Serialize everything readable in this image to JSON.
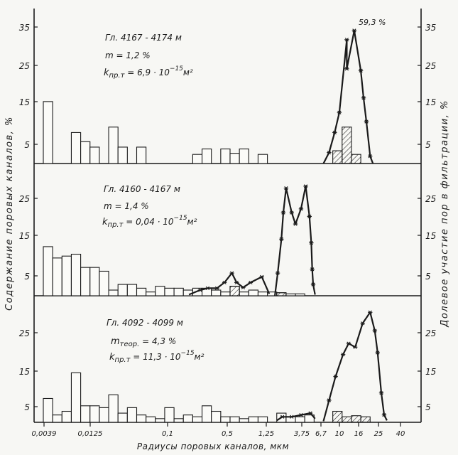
{
  "chart_data": {
    "type": "bar",
    "xlabel": "Радиусы поровых каналов, мкм",
    "ylabel_left": "Содержание поровых каналов, %",
    "ylabel_right": "Долевое участие пор в фильтрации, %",
    "x_ticks": [
      "0,0039",
      "0,0125",
      "0,1",
      "0,5",
      "1,25",
      "3,75",
      "6,7",
      "10",
      "16",
      "25",
      "40"
    ],
    "panels": [
      {
        "depth": "Гл. 4167 - 4174 м",
        "porosity": "m = 1,2 %",
        "perm_symbol": "k",
        "perm_sub": "пр.т",
        "perm_value": " = 6,9 · 10",
        "perm_exp": "−15",
        "perm_unit": "м²",
        "peak_label": "59,3 %",
        "y_ticks_left": [
          "5",
          "15",
          "25",
          "35"
        ],
        "y_ticks_right": [
          "5",
          "15",
          "25",
          "35"
        ],
        "ylim": [
          0,
          40
        ],
        "bars": [
          {
            "x0": 0,
            "x1": 1,
            "y": 17
          },
          {
            "x0": 3,
            "x1": 4,
            "y": 8.5
          },
          {
            "x0": 4,
            "x1": 5,
            "y": 6
          },
          {
            "x0": 5,
            "x1": 6,
            "y": 4.5
          },
          {
            "x0": 7,
            "x1": 8,
            "y": 10
          },
          {
            "x0": 8,
            "x1": 9,
            "y": 4.5
          },
          {
            "x0": 10,
            "x1": 11,
            "y": 4.5
          },
          {
            "x0": 16,
            "x1": 17,
            "y": 2.5
          },
          {
            "x0": 17,
            "x1": 18,
            "y": 4
          },
          {
            "x0": 19,
            "x1": 20,
            "y": 4
          },
          {
            "x0": 20,
            "x1": 21,
            "y": 2.8
          },
          {
            "x0": 21,
            "x1": 22,
            "y": 4
          },
          {
            "x0": 23,
            "x1": 24,
            "y": 2.5
          }
        ],
        "hatched_bars": [
          {
            "x0": 31,
            "x1": 32,
            "y": 3.5
          },
          {
            "x0": 32,
            "x1": 33,
            "y": 10
          },
          {
            "x0": 33,
            "x1": 34,
            "y": 2.5
          }
        ],
        "curve_segments": [
          [
            [
              30,
              0
            ],
            [
              30.6,
              3
            ],
            [
              31.2,
              8.5
            ],
            [
              31.7,
              14
            ],
            [
              32.5,
              34
            ],
            [
              32.5,
              26
            ],
            [
              33.3,
              36.5
            ],
            [
              34,
              25.5
            ],
            [
              34.3,
              18
            ],
            [
              34.6,
              11.5
            ],
            [
              35,
              2
            ],
            [
              35.3,
              0
            ]
          ]
        ]
      },
      {
        "depth": "Гл. 4160 - 4167 м",
        "porosity": "m = 1,4 %",
        "perm_symbol": "k",
        "perm_sub": "пр.т",
        "perm_value": " = 0,04 · 10",
        "perm_exp": "−15",
        "perm_unit": "м²",
        "y_ticks_left": [
          "5",
          "15",
          "25"
        ],
        "y_ticks_right": [
          "5",
          "15",
          "25"
        ],
        "ylim": [
          0,
          32
        ],
        "bars": [
          {
            "x0": 0,
            "x1": 1,
            "y": 13
          },
          {
            "x0": 1,
            "x1": 2,
            "y": 10
          },
          {
            "x0": 2,
            "x1": 3,
            "y": 10.5
          },
          {
            "x0": 3,
            "x1": 4,
            "y": 11
          },
          {
            "x0": 4,
            "x1": 5,
            "y": 7.5
          },
          {
            "x0": 5,
            "x1": 6,
            "y": 7.5
          },
          {
            "x0": 6,
            "x1": 7,
            "y": 6.5
          },
          {
            "x0": 7,
            "x1": 8,
            "y": 1.5
          },
          {
            "x0": 8,
            "x1": 9,
            "y": 3
          },
          {
            "x0": 9,
            "x1": 10,
            "y": 3
          },
          {
            "x0": 10,
            "x1": 11,
            "y": 2
          },
          {
            "x0": 11,
            "x1": 12,
            "y": 1
          },
          {
            "x0": 12,
            "x1": 13,
            "y": 2.5
          },
          {
            "x0": 13,
            "x1": 14,
            "y": 2
          },
          {
            "x0": 14,
            "x1": 15,
            "y": 2
          },
          {
            "x0": 15,
            "x1": 16,
            "y": 1.5
          },
          {
            "x0": 16,
            "x1": 17,
            "y": 2
          },
          {
            "x0": 17,
            "x1": 18,
            "y": 2
          },
          {
            "x0": 18,
            "x1": 19,
            "y": 1.5
          },
          {
            "x0": 19,
            "x1": 20,
            "y": 1
          },
          {
            "x0": 20,
            "x1": 21,
            "y": 2.5
          },
          {
            "x0": 21,
            "x1": 22,
            "y": 1
          },
          {
            "x0": 22,
            "x1": 23,
            "y": 1.5
          },
          {
            "x0": 23,
            "x1": 24,
            "y": 1
          },
          {
            "x0": 24,
            "x1": 25,
            "y": 1
          },
          {
            "x0": 25,
            "x1": 26,
            "y": 0.8
          },
          {
            "x0": 26,
            "x1": 27,
            "y": 0.5
          },
          {
            "x0": 27,
            "x1": 28,
            "y": 0.5
          }
        ],
        "hatched_bars": [
          {
            "x0": 20,
            "x1": 21,
            "y": 2.5
          },
          {
            "x0": 25,
            "x1": 26,
            "y": 0.8
          }
        ],
        "curve_segments": [
          [
            [
              15.6,
              0.3
            ],
            [
              16.8,
              1.5
            ],
            [
              17.6,
              2
            ],
            [
              18.6,
              2
            ],
            [
              19.4,
              3.5
            ],
            [
              20.2,
              6
            ],
            [
              20.7,
              3.5
            ],
            [
              21.4,
              2.2
            ],
            [
              22.2,
              3.5
            ],
            [
              23.4,
              5
            ],
            [
              24.2,
              0.5
            ]
          ],
          [
            [
              24.8,
              0
            ],
            [
              25.1,
              6
            ],
            [
              25.5,
              15
            ],
            [
              25.7,
              22
            ],
            [
              26,
              28.5
            ],
            [
              26.6,
              22
            ],
            [
              27,
              19
            ],
            [
              27.6,
              23
            ],
            [
              28.1,
              29
            ],
            [
              28.5,
              21
            ],
            [
              28.7,
              14
            ],
            [
              28.8,
              7
            ],
            [
              28.9,
              3
            ],
            [
              29.1,
              0.3
            ]
          ]
        ]
      },
      {
        "depth": "Гл. 4092 - 4099 м",
        "porosity_symbol": "m",
        "porosity_sub": "теор.",
        "porosity_value": " = 4,3 %",
        "perm_symbol": "k",
        "perm_sub": "пр.т",
        "perm_value": " = 11,3 · 10",
        "perm_exp": "−15",
        "perm_unit": "м²",
        "y_ticks_left": [
          "5",
          "15",
          "25"
        ],
        "y_ticks_right": [
          "5",
          "15",
          "25"
        ],
        "ylim": [
          0,
          32
        ],
        "bars": [
          {
            "x0": 0,
            "x1": 1,
            "y": 6.5
          },
          {
            "x0": 1,
            "x1": 2,
            "y": 2
          },
          {
            "x0": 2,
            "x1": 3,
            "y": 3
          },
          {
            "x0": 3,
            "x1": 4,
            "y": 13.5
          },
          {
            "x0": 4,
            "x1": 5,
            "y": 4.5
          },
          {
            "x0": 5,
            "x1": 6,
            "y": 4.5
          },
          {
            "x0": 6,
            "x1": 7,
            "y": 4
          },
          {
            "x0": 7,
            "x1": 8,
            "y": 7.5
          },
          {
            "x0": 8,
            "x1": 9,
            "y": 2.5
          },
          {
            "x0": 9,
            "x1": 10,
            "y": 4
          },
          {
            "x0": 10,
            "x1": 11,
            "y": 2
          },
          {
            "x0": 11,
            "x1": 12,
            "y": 1.5
          },
          {
            "x0": 12,
            "x1": 13,
            "y": 1
          },
          {
            "x0": 13,
            "x1": 14,
            "y": 4
          },
          {
            "x0": 14,
            "x1": 15,
            "y": 1
          },
          {
            "x0": 15,
            "x1": 16,
            "y": 2
          },
          {
            "x0": 16,
            "x1": 17,
            "y": 1.5
          },
          {
            "x0": 17,
            "x1": 18,
            "y": 4.5
          },
          {
            "x0": 18,
            "x1": 19,
            "y": 3
          },
          {
            "x0": 19,
            "x1": 20,
            "y": 1.5
          },
          {
            "x0": 20,
            "x1": 21,
            "y": 1.5
          },
          {
            "x0": 21,
            "x1": 22,
            "y": 1
          },
          {
            "x0": 22,
            "x1": 23,
            "y": 1.5
          },
          {
            "x0": 23,
            "x1": 24,
            "y": 1.5
          },
          {
            "x0": 25,
            "x1": 26,
            "y": 2.5
          },
          {
            "x0": 26,
            "x1": 27,
            "y": 1.5
          },
          {
            "x0": 27,
            "x1": 28,
            "y": 1.5
          },
          {
            "x0": 28,
            "x1": 29,
            "y": 2
          }
        ],
        "hatched_bars": [
          {
            "x0": 31,
            "x1": 32,
            "y": 3
          },
          {
            "x0": 32,
            "x1": 33,
            "y": 1.5
          },
          {
            "x0": 33,
            "x1": 34,
            "y": 1.8
          },
          {
            "x0": 34,
            "x1": 35,
            "y": 1.5
          }
        ],
        "curve_segments": [
          [
            [
              25,
              0.5
            ],
            [
              25.6,
              1.5
            ],
            [
              26.6,
              1.5
            ],
            [
              27.6,
              2
            ],
            [
              28.6,
              2.5
            ],
            [
              29.1,
              1
            ]
          ],
          [
            [
              30,
              0.3
            ],
            [
              30.6,
              6
            ],
            [
              31.3,
              12.5
            ],
            [
              32.1,
              18.5
            ],
            [
              32.7,
              21.5
            ],
            [
              33.4,
              20.5
            ],
            [
              34.2,
              27
            ],
            [
              35,
              30
            ],
            [
              35.5,
              25
            ],
            [
              35.8,
              19
            ],
            [
              36.2,
              8
            ],
            [
              36.5,
              2
            ],
            [
              36.8,
              0.5
            ]
          ]
        ]
      }
    ]
  }
}
